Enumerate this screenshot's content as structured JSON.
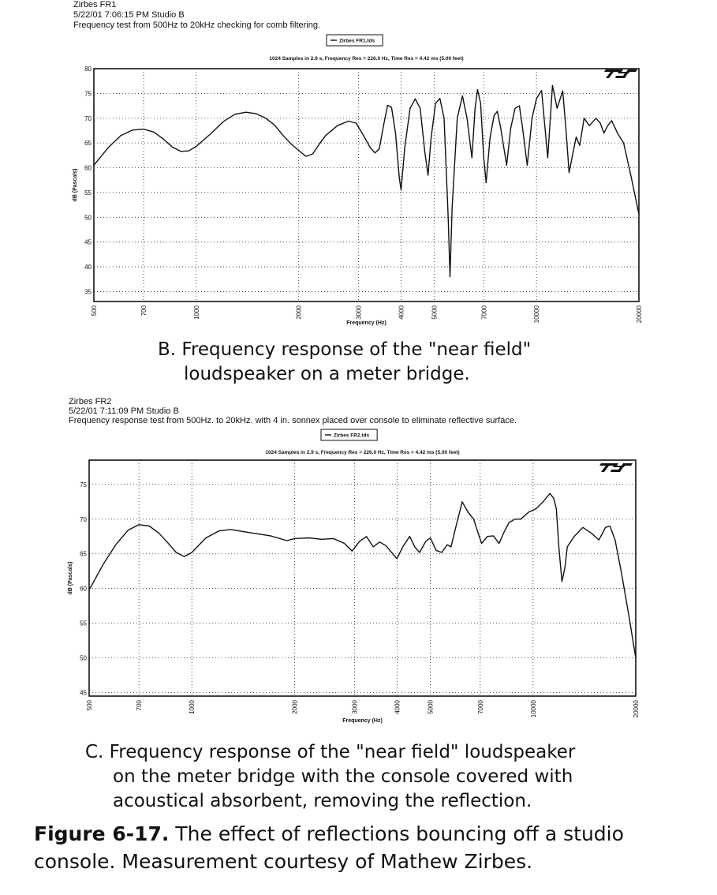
{
  "chart_data": [
    {
      "type": "line",
      "title": "Zirbes FR1",
      "notes": [
        "5/22/01 7:06:15 PM   Studio B",
        "Frequency test from 500Hz to 20kHz checking for comb filtering."
      ],
      "subtitle": "1024 Samples in 2.9 s, Frequency Res = 226.0 Hz, Time Res = 4.42 ms (5.00 feet)",
      "x_label": "Frequency (Hz)",
      "y_label": "dB (Pascals)",
      "xscale": "log",
      "xlim": [
        500,
        20000
      ],
      "xticks": [
        500,
        700,
        1000,
        2000,
        3000,
        4000,
        5000,
        7000,
        10000,
        20000
      ],
      "ylim": [
        33,
        80
      ],
      "yticks": [
        35,
        40,
        45,
        50,
        55,
        60,
        65,
        70,
        75,
        80
      ],
      "grid": true,
      "x": [
        500,
        550,
        600,
        650,
        700,
        750,
        800,
        850,
        900,
        950,
        1000,
        1100,
        1200,
        1300,
        1400,
        1500,
        1600,
        1700,
        1800,
        1900,
        2000,
        2100,
        2200,
        2300,
        2400,
        2600,
        2800,
        2950,
        3100,
        3250,
        3350,
        3450,
        3550,
        3650,
        3750,
        3850,
        3950,
        4000,
        4100,
        4250,
        4400,
        4550,
        4700,
        4800,
        4900,
        5050,
        5200,
        5350,
        5500,
        5570,
        5650,
        5850,
        6060,
        6250,
        6460,
        6600,
        6710,
        6850,
        7000,
        7110,
        7300,
        7500,
        7670,
        7850,
        8170,
        8400,
        8650,
        8910,
        9100,
        9390,
        9700,
        10000,
        10350,
        10790,
        11140,
        11500,
        11940,
        12200,
        12470,
        12800,
        13080,
        13400,
        13800,
        14300,
        14960,
        15400,
        15780,
        16200,
        16640,
        17300,
        18030,
        19000,
        20000
      ],
      "series": [
        {
          "name": "Zirbes FR1.tds",
          "color": "#111111",
          "values": [
            60.5,
            64,
            66.5,
            67.6,
            67.8,
            67.2,
            65.8,
            64.2,
            63.3,
            63.4,
            64.3,
            66.8,
            69.3,
            70.8,
            71.2,
            70.9,
            70,
            68.6,
            66.5,
            64.8,
            63.5,
            62.3,
            62.8,
            64.8,
            66.5,
            68.5,
            69.4,
            69,
            66.5,
            64,
            63,
            63.8,
            68.5,
            72.6,
            72.2,
            67,
            58,
            55.5,
            64,
            72,
            73.9,
            72,
            63,
            58.5,
            66,
            73,
            74,
            70,
            50,
            38,
            52,
            70,
            74.5,
            70,
            62,
            72,
            75.8,
            73,
            62,
            57,
            66,
            70.5,
            71.4,
            68,
            60.5,
            68,
            72,
            72.5,
            68,
            60.5,
            70,
            74,
            75.6,
            62,
            76.6,
            72,
            75.5,
            68,
            59,
            63,
            66.2,
            64.5,
            70,
            68.5,
            70,
            69,
            67,
            68.5,
            69.5,
            67,
            65,
            58,
            50.6
          ]
        }
      ],
      "caption": [
        "B. Frequency response of the \"near field\"",
        "loudspeaker on a meter bridge."
      ]
    },
    {
      "type": "line",
      "title": "Zirbes FR2",
      "notes": [
        "5/22/01 7:11:09 PM   Studio B",
        "Frequency response test from 500Hz. to 20kHz. with 4 in. sonnex placed over console to eliminate reflective surface."
      ],
      "subtitle": "1024 Samples in 2.9 s, Frequency Res = 226.0 Hz, Time Res = 4.42 ms (5.00 feet)",
      "x_label": "Frequency (Hz)",
      "y_label": "dB (Pascals)",
      "xscale": "log",
      "xlim": [
        500,
        20000
      ],
      "xticks": [
        500,
        700,
        1000,
        2000,
        3000,
        4000,
        5000,
        7000,
        10000,
        20000
      ],
      "ylim": [
        44.5,
        78.5
      ],
      "yticks": [
        45,
        50,
        55,
        60,
        65,
        70,
        75
      ],
      "grid": true,
      "x": [
        500,
        550,
        600,
        650,
        700,
        750,
        800,
        850,
        900,
        950,
        1000,
        1100,
        1200,
        1300,
        1500,
        1700,
        1900,
        2000,
        2200,
        2400,
        2600,
        2800,
        2950,
        3100,
        3250,
        3400,
        3550,
        3700,
        3850,
        3990,
        4150,
        4350,
        4500,
        4650,
        4850,
        5000,
        5200,
        5400,
        5600,
        5750,
        5950,
        6200,
        6450,
        6700,
        6900,
        7070,
        7350,
        7650,
        7950,
        8200,
        8500,
        8850,
        9200,
        9700,
        10200,
        10700,
        11200,
        11500,
        11700,
        11900,
        12150,
        12400,
        12600,
        13200,
        14000,
        14800,
        15600,
        16300,
        16800,
        17400,
        18200,
        19100,
        20000
      ],
      "series": [
        {
          "name": "Zirbes FR2.tds",
          "color": "#111111",
          "values": [
            59.8,
            63.5,
            66.4,
            68.4,
            69.2,
            69,
            68,
            66.6,
            65.2,
            64.6,
            65.2,
            67.3,
            68.3,
            68.5,
            68,
            67.6,
            66.9,
            67.2,
            67.3,
            67.1,
            67.2,
            66.5,
            65.4,
            66.8,
            67.5,
            66,
            66.7,
            66.2,
            65.2,
            64.3,
            66,
            67.5,
            66,
            65.2,
            66.8,
            67.3,
            65.5,
            65.2,
            66.3,
            66,
            69,
            72.5,
            71,
            70,
            68,
            66.5,
            67.5,
            67.6,
            66.5,
            68,
            69.5,
            70,
            70,
            71,
            71.5,
            72.5,
            73.7,
            73,
            71.5,
            66,
            61,
            63,
            66,
            67.5,
            68.8,
            68,
            67,
            68.8,
            69,
            67,
            62,
            56,
            50
          ]
        }
      ],
      "caption": [
        "C. Frequency response of the \"near field\" loudspeaker",
        "on the meter bridge with the console covered with",
        "acoustical absorbent, removing the reflection."
      ]
    }
  ],
  "figure": {
    "label": "Figure 6-17.",
    "lines": [
      "The effect of reflections bouncing off a studio",
      "console. Measurement courtesy of Mathew Zirbes."
    ]
  }
}
